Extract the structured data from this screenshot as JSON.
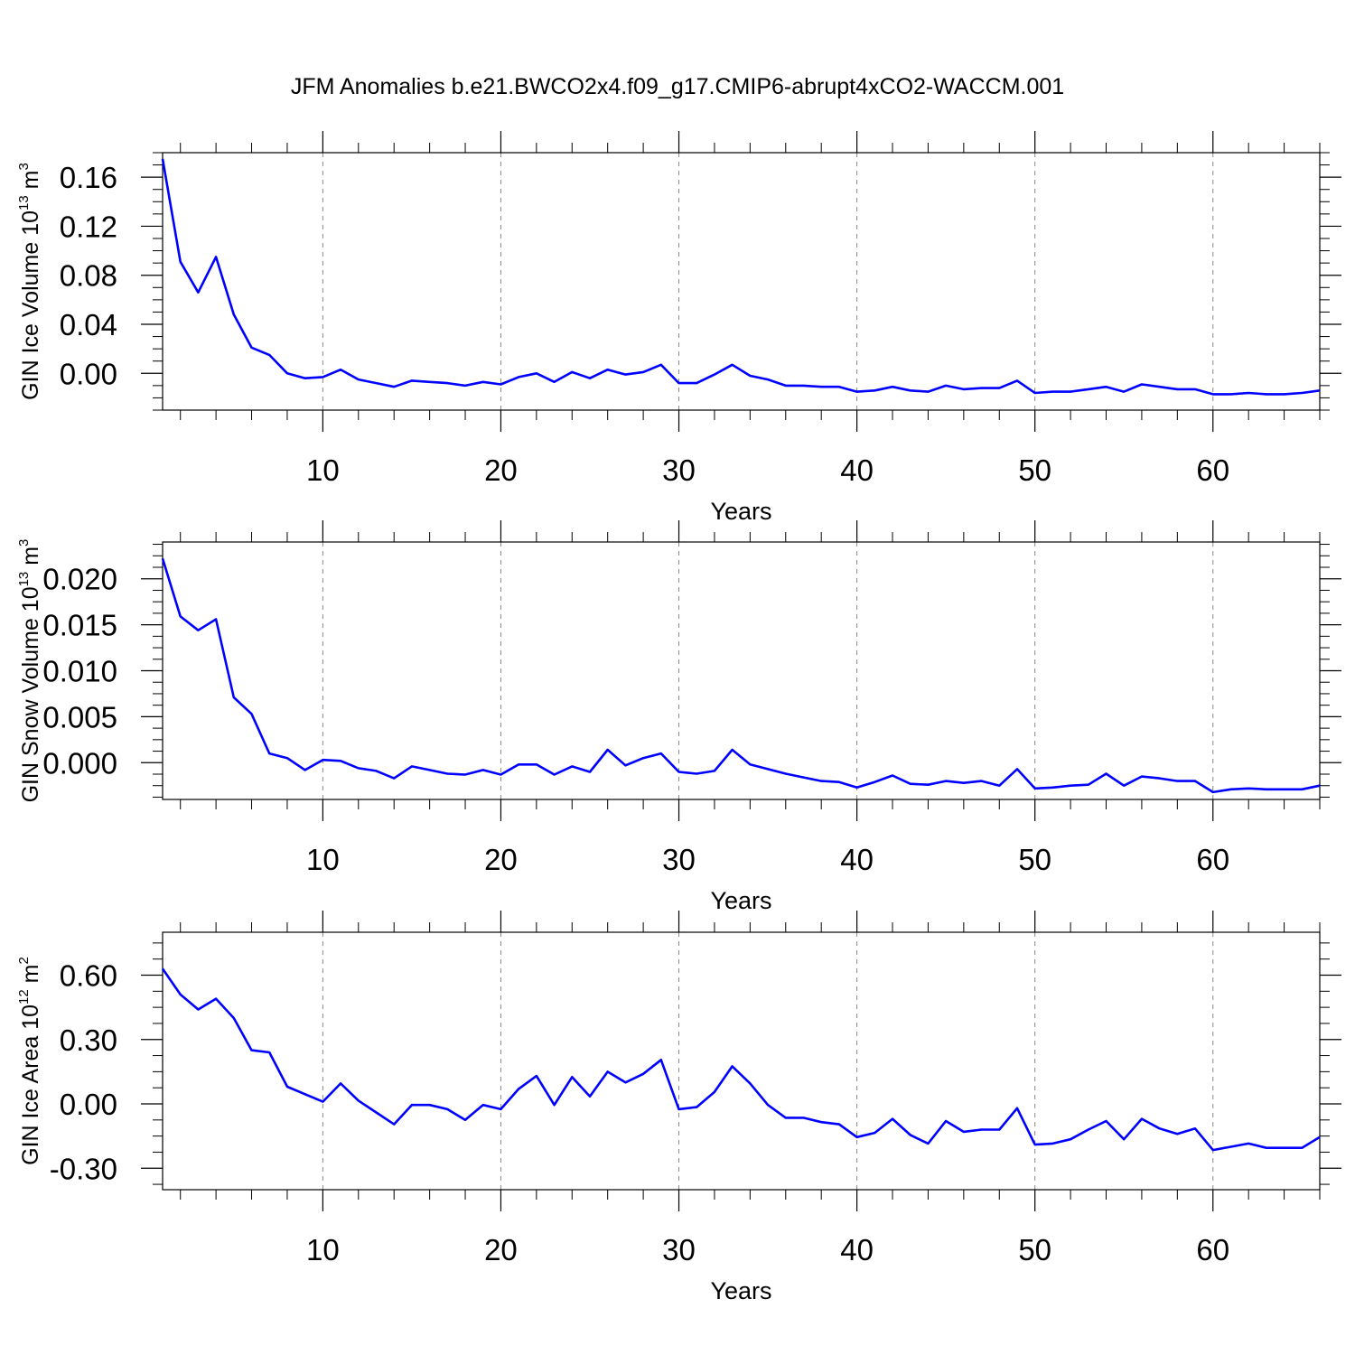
{
  "title": "JFM Anomalies b.e21.BWCO2x4.f09_g17.CMIP6-abrupt4xCO2-WACCM.001",
  "colors": {
    "line": "#0000ff",
    "axis": "#000000",
    "grid": "#888888"
  },
  "chart_data": [
    {
      "type": "line",
      "ylabel": "GIN Ice Volume 10",
      "ylabel_exp": "13",
      "ylabel_unit": " m",
      "ylabel_unit_exp": "3",
      "xlabel": "Years",
      "xlim": [
        1,
        66
      ],
      "ylim": [
        -0.03,
        0.18
      ],
      "xticks": [
        10,
        20,
        30,
        40,
        50,
        60
      ],
      "xtick_labels": [
        "10",
        "20",
        "30",
        "40",
        "50",
        "60"
      ],
      "yticks": [
        0.16,
        0.12,
        0.08,
        0.04,
        0.0
      ],
      "ytick_labels": [
        "0.16",
        "0.12",
        "0.08",
        "0.04",
        "0.00"
      ],
      "grid": "vertical dashed at major x ticks",
      "series": [
        {
          "name": "GIN Ice Volume",
          "x": [
            1,
            2,
            3,
            4,
            5,
            6,
            7,
            8,
            9,
            10,
            11,
            12,
            13,
            14,
            15,
            16,
            17,
            18,
            19,
            20,
            21,
            22,
            23,
            24,
            25,
            26,
            27,
            28,
            29,
            30,
            31,
            32,
            33,
            34,
            35,
            36,
            37,
            38,
            39,
            40,
            41,
            42,
            43,
            44,
            45,
            46,
            47,
            48,
            49,
            50,
            51,
            52,
            53,
            54,
            55,
            56,
            57,
            58,
            59,
            60,
            61,
            62,
            63,
            64,
            65,
            66
          ],
          "values": [
            0.175,
            0.091,
            0.066,
            0.095,
            0.048,
            0.021,
            0.015,
            0.0,
            -0.004,
            -0.003,
            0.003,
            -0.005,
            -0.008,
            -0.011,
            -0.006,
            -0.007,
            -0.008,
            -0.01,
            -0.007,
            -0.009,
            -0.003,
            0.0,
            -0.007,
            0.001,
            -0.004,
            0.003,
            -0.001,
            0.001,
            0.007,
            -0.008,
            -0.008,
            -0.001,
            0.007,
            -0.002,
            -0.005,
            -0.01,
            -0.01,
            -0.011,
            -0.011,
            -0.015,
            -0.014,
            -0.011,
            -0.014,
            -0.015,
            -0.01,
            -0.013,
            -0.012,
            -0.012,
            -0.006,
            -0.016,
            -0.015,
            -0.015,
            -0.013,
            -0.011,
            -0.015,
            -0.009,
            -0.011,
            -0.013,
            -0.013,
            -0.017,
            -0.017,
            -0.016,
            -0.017,
            -0.017,
            -0.016,
            -0.014
          ]
        }
      ]
    },
    {
      "type": "line",
      "ylabel": "GIN Snow Volume 10",
      "ylabel_exp": "13",
      "ylabel_unit": " m",
      "ylabel_unit_exp": "3",
      "xlabel": "Years",
      "xlim": [
        1,
        66
      ],
      "ylim": [
        -0.004,
        0.024
      ],
      "xticks": [
        10,
        20,
        30,
        40,
        50,
        60
      ],
      "xtick_labels": [
        "10",
        "20",
        "30",
        "40",
        "50",
        "60"
      ],
      "yticks": [
        0.02,
        0.015,
        0.01,
        0.005,
        0.0
      ],
      "ytick_labels": [
        "0.020",
        "0.015",
        "0.010",
        "0.005",
        "0.000"
      ],
      "grid": "vertical dashed at major x ticks",
      "series": [
        {
          "name": "GIN Snow Volume",
          "x": [
            1,
            2,
            3,
            4,
            5,
            6,
            7,
            8,
            9,
            10,
            11,
            12,
            13,
            14,
            15,
            16,
            17,
            18,
            19,
            20,
            21,
            22,
            23,
            24,
            25,
            26,
            27,
            28,
            29,
            30,
            31,
            32,
            33,
            34,
            35,
            36,
            37,
            38,
            39,
            40,
            41,
            42,
            43,
            44,
            45,
            46,
            47,
            48,
            49,
            50,
            51,
            52,
            53,
            54,
            55,
            56,
            57,
            58,
            59,
            60,
            61,
            62,
            63,
            64,
            65,
            66
          ],
          "values": [
            0.0222,
            0.0159,
            0.0144,
            0.0156,
            0.0071,
            0.0053,
            0.001,
            0.0005,
            -0.0008,
            0.0003,
            0.0002,
            -0.0006,
            -0.0009,
            -0.0017,
            -0.0004,
            -0.0008,
            -0.0012,
            -0.0013,
            -0.0008,
            -0.0013,
            -0.0002,
            -0.0002,
            -0.0013,
            -0.0004,
            -0.001,
            0.0014,
            -0.0003,
            0.0005,
            0.001,
            -0.001,
            -0.0012,
            -0.0009,
            0.0014,
            -0.0002,
            -0.0007,
            -0.0012,
            -0.0016,
            -0.002,
            -0.0021,
            -0.0027,
            -0.0021,
            -0.0014,
            -0.0023,
            -0.0024,
            -0.002,
            -0.0022,
            -0.002,
            -0.0025,
            -0.0007,
            -0.0028,
            -0.0027,
            -0.0025,
            -0.0024,
            -0.0012,
            -0.0025,
            -0.0015,
            -0.0017,
            -0.002,
            -0.002,
            -0.0032,
            -0.0029,
            -0.0028,
            -0.0029,
            -0.0029,
            -0.0029,
            -0.0025
          ]
        }
      ]
    },
    {
      "type": "line",
      "ylabel": "GIN Ice Area 10",
      "ylabel_exp": "12",
      "ylabel_unit": " m",
      "ylabel_unit_exp": "2",
      "xlabel": "Years",
      "xlim": [
        1,
        66
      ],
      "ylim": [
        -0.4,
        0.8
      ],
      "xticks": [
        10,
        20,
        30,
        40,
        50,
        60
      ],
      "xtick_labels": [
        "10",
        "20",
        "30",
        "40",
        "50",
        "60"
      ],
      "yticks": [
        0.6,
        0.3,
        0.0,
        -0.3
      ],
      "ytick_labels": [
        "0.60",
        "0.30",
        "0.00",
        "-0.30"
      ],
      "grid": "vertical dashed at major x ticks",
      "series": [
        {
          "name": "GIN Ice Area",
          "x": [
            1,
            2,
            3,
            4,
            5,
            6,
            7,
            8,
            9,
            10,
            11,
            12,
            13,
            14,
            15,
            16,
            17,
            18,
            19,
            20,
            21,
            22,
            23,
            24,
            25,
            26,
            27,
            28,
            29,
            30,
            31,
            32,
            33,
            34,
            35,
            36,
            37,
            38,
            39,
            40,
            41,
            42,
            43,
            44,
            45,
            46,
            47,
            48,
            49,
            50,
            51,
            52,
            53,
            54,
            55,
            56,
            57,
            58,
            59,
            60,
            61,
            62,
            63,
            64,
            65,
            66
          ],
          "values": [
            0.63,
            0.51,
            0.44,
            0.49,
            0.4,
            0.25,
            0.24,
            0.08,
            0.045,
            0.01,
            0.095,
            0.015,
            -0.04,
            -0.095,
            -0.005,
            -0.005,
            -0.025,
            -0.075,
            -0.005,
            -0.025,
            0.07,
            0.13,
            -0.005,
            0.125,
            0.035,
            0.15,
            0.1,
            0.14,
            0.205,
            -0.025,
            -0.015,
            0.055,
            0.175,
            0.095,
            -0.005,
            -0.065,
            -0.065,
            -0.085,
            -0.095,
            -0.155,
            -0.135,
            -0.07,
            -0.145,
            -0.185,
            -0.08,
            -0.13,
            -0.12,
            -0.12,
            -0.02,
            -0.19,
            -0.185,
            -0.165,
            -0.12,
            -0.08,
            -0.165,
            -0.07,
            -0.115,
            -0.14,
            -0.115,
            -0.215,
            -0.2,
            -0.185,
            -0.205,
            -0.205,
            -0.205,
            -0.155
          ]
        }
      ]
    }
  ]
}
